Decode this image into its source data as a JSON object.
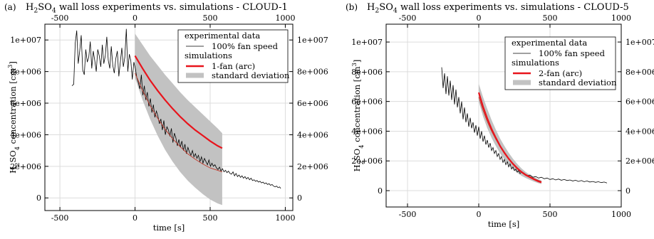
{
  "chart_data": [
    {
      "panel_label": "(a)",
      "title": "H2SO4 wall loss experiments vs. simulations - CLOUD-1",
      "type": "line",
      "xlabel": "time [s]",
      "ylabel": "H2SO4 concentration [cm3]",
      "xlim": [
        -600,
        1050
      ],
      "ylim": [
        -800000,
        11000000
      ],
      "x_ticks": [
        -500,
        0,
        500,
        1000
      ],
      "y_ticks": [
        0,
        2000000,
        4000000,
        6000000,
        8000000,
        10000000
      ],
      "y_tick_labels": [
        "0",
        "2e+006",
        "4e+006",
        "6e+006",
        "8e+006",
        "1e+007"
      ],
      "top_axis_ticks": [
        -500,
        0,
        500,
        1000
      ],
      "right_axis_ticks": [
        0,
        2000000,
        4000000,
        6000000,
        8000000,
        10000000
      ],
      "right_axis_tick_labels": [
        "0",
        "2e+006",
        "4e+006",
        "6e+006",
        "8e+006",
        "1e+007"
      ],
      "grid": true,
      "legend_position": "top-right",
      "legend": {
        "group1": "experimental data",
        "exp": "100% fan speed",
        "group2": "simulations",
        "sim": "1-fan (arc)",
        "band": "standard deviation"
      },
      "colors": {
        "experiment": "#000000",
        "simulation": "#e8141c",
        "band": "#c2c2c2",
        "fit": "#c0392b"
      },
      "series": [
        {
          "name": "100% fan speed",
          "x": [
            -420,
            -408,
            -398,
            -388,
            -378,
            -368,
            -358,
            -348,
            -338,
            -328,
            -318,
            -308,
            -298,
            -288,
            -278,
            -268,
            -258,
            -248,
            -238,
            -228,
            -218,
            -208,
            -198,
            -188,
            -178,
            -168,
            -158,
            -148,
            -138,
            -128,
            -118,
            -108,
            -98,
            -88,
            -78,
            -68,
            -58,
            -48,
            -38,
            -28,
            -18,
            -8,
            2,
            12,
            22,
            32,
            42,
            52,
            62,
            72,
            82,
            92,
            102,
            112,
            122,
            132,
            142,
            152,
            162,
            172,
            182,
            192,
            202,
            212,
            222,
            232,
            242,
            252,
            262,
            272,
            282,
            292,
            302,
            312,
            322,
            332,
            342,
            352,
            362,
            372,
            382,
            392,
            402,
            412,
            422,
            432,
            442,
            452,
            462,
            472,
            482,
            492,
            502,
            512,
            522,
            532,
            542,
            552,
            562,
            572,
            582,
            592,
            602,
            612,
            622,
            632,
            642,
            652,
            662,
            672,
            682,
            692,
            702,
            712,
            722,
            732,
            742,
            752,
            762,
            772,
            782,
            792,
            802,
            812,
            822,
            832,
            842,
            852,
            862,
            872,
            882,
            892,
            902,
            912,
            922,
            932,
            942,
            952,
            962,
            970
          ],
          "y": [
            7100000,
            7200000,
            9800000,
            10600000,
            8500000,
            9300000,
            10300000,
            8100000,
            7800000,
            9400000,
            8600000,
            8900000,
            9900000,
            8200000,
            9300000,
            8700000,
            8000000,
            9400000,
            9000000,
            8300000,
            9700000,
            8500000,
            9000000,
            10200000,
            8700000,
            8200000,
            9600000,
            8400000,
            7900000,
            8800000,
            9300000,
            7700000,
            8600000,
            9500000,
            8300000,
            8900000,
            10700000,
            8000000,
            9100000,
            8700000,
            7500000,
            8600000,
            8200000,
            7600000,
            7300000,
            6900000,
            7800000,
            6500000,
            7100000,
            6200000,
            6700000,
            5800000,
            6300000,
            5400000,
            5900000,
            5100000,
            5500000,
            5200000,
            4700000,
            5000000,
            4300000,
            4900000,
            4000000,
            4500000,
            4300000,
            3900000,
            4400000,
            3500000,
            4100000,
            3800000,
            3300000,
            3700000,
            3200000,
            3600000,
            3000000,
            3400000,
            2800000,
            3200000,
            2900000,
            2700000,
            3000000,
            2600000,
            2800000,
            2500000,
            2700000,
            2300000,
            2600000,
            2200000,
            2500000,
            2300000,
            2100000,
            2400000,
            2000000,
            2200000,
            2000000,
            2100000,
            1900000,
            1800000,
            1950000,
            1700000,
            1850000,
            1650000,
            1750000,
            1600000,
            1700000,
            1550000,
            1500000,
            1650000,
            1400000,
            1550000,
            1350000,
            1450000,
            1300000,
            1400000,
            1250000,
            1350000,
            1200000,
            1300000,
            1150000,
            1250000,
            1100000,
            1150000,
            1050000,
            1100000,
            1000000,
            1050000,
            950000,
            1000000,
            900000,
            950000,
            850000,
            900000,
            800000,
            850000,
            750000,
            700000,
            750000,
            650000,
            700000,
            600000
          ]
        },
        {
          "name": "1-fan (arc)",
          "x": [
            0,
            50,
            100,
            150,
            200,
            250,
            300,
            350,
            400,
            450,
            500,
            550,
            580
          ],
          "y": [
            9000000,
            8200000,
            7450000,
            6800000,
            6200000,
            5650000,
            5150000,
            4700000,
            4300000,
            3950000,
            3600000,
            3300000,
            3150000
          ]
        },
        {
          "name": "standard deviation",
          "x": [
            0,
            50,
            100,
            150,
            200,
            250,
            300,
            350,
            400,
            450,
            500,
            550,
            580
          ],
          "upper": [
            10400000,
            9700000,
            9000000,
            8400000,
            7800000,
            7250000,
            6700000,
            6200000,
            5750000,
            5300000,
            4850000,
            4400000,
            4100000
          ],
          "lower": [
            7600000,
            6200000,
            5000000,
            3950000,
            3050000,
            2300000,
            1650000,
            1100000,
            650000,
            250000,
            -100000,
            -350000,
            -450000
          ]
        },
        {
          "name": "",
          "x": [
            0,
            50,
            100,
            150,
            200,
            250,
            300,
            350,
            400,
            450,
            500,
            550,
            580
          ],
          "y": [
            7900000,
            6800000,
            5850000,
            5050000,
            4350000,
            3750000,
            3250000,
            2800000,
            2450000,
            2150000,
            1900000,
            1750000,
            1650000
          ]
        }
      ]
    },
    {
      "panel_label": "(b)",
      "title": "H2SO4 wall loss experiments vs. simulations - CLOUD-5",
      "type": "line",
      "xlabel": "time [s]",
      "ylabel": "H2SO4 concentration [cm3]",
      "xlim": [
        -650,
        1000
      ],
      "ylim": [
        -1100000,
        11200000
      ],
      "x_ticks": [
        -500,
        0,
        500,
        1000
      ],
      "y_ticks": [
        0,
        2000000,
        4000000,
        6000000,
        8000000,
        10000000
      ],
      "y_tick_labels": [
        "0",
        "2e+006",
        "4e+006",
        "6e+006",
        "8e+006",
        "1e+007"
      ],
      "top_axis_ticks": [
        -500,
        0,
        500,
        1000
      ],
      "right_axis_ticks": [
        0,
        2000000,
        4000000,
        6000000,
        8000000,
        10000000
      ],
      "right_axis_tick_labels": [
        "0",
        "2e+006",
        "4e+006",
        "6e+006",
        "8e+006",
        "1e+007"
      ],
      "grid": true,
      "legend_position": "top-right",
      "legend": {
        "group1": "experimental data",
        "exp": "100% fan speed",
        "group2": "simulations",
        "sim": "2-fan (arc)",
        "band": "standard deviation"
      },
      "colors": {
        "experiment": "#000000",
        "simulation": "#e8141c",
        "band": "#c2c2c2",
        "fit": "#c0392b"
      },
      "series": [
        {
          "name": "100% fan speed",
          "x": [
            -260,
            -250,
            -240,
            -230,
            -220,
            -210,
            -200,
            -190,
            -180,
            -170,
            -160,
            -150,
            -140,
            -130,
            -120,
            -110,
            -100,
            -90,
            -80,
            -70,
            -60,
            -50,
            -40,
            -30,
            -20,
            -10,
            0,
            10,
            20,
            30,
            40,
            50,
            60,
            70,
            80,
            90,
            100,
            110,
            120,
            130,
            140,
            150,
            160,
            170,
            180,
            190,
            200,
            210,
            220,
            230,
            240,
            250,
            260,
            270,
            280,
            290,
            300,
            320,
            340,
            360,
            380,
            400,
            420,
            440,
            460,
            480,
            500,
            520,
            540,
            560,
            580,
            600,
            620,
            640,
            660,
            680,
            700,
            720,
            740,
            760,
            780,
            800,
            820,
            840,
            860,
            880,
            900
          ],
          "y": [
            8300000,
            6900000,
            7900000,
            6500000,
            7700000,
            6400000,
            7400000,
            6100000,
            7100000,
            5800000,
            6800000,
            5600000,
            6300000,
            5200000,
            6000000,
            4800000,
            5600000,
            4600000,
            5200000,
            4300000,
            4900000,
            4200000,
            4600000,
            3900000,
            4400000,
            3700000,
            4300000,
            3500000,
            4000000,
            3300000,
            3700000,
            3100000,
            3400000,
            2900000,
            3200000,
            2700000,
            2900000,
            2500000,
            2700000,
            2300000,
            2500000,
            2100000,
            2300000,
            1900000,
            2100000,
            1750000,
            1950000,
            1600000,
            1800000,
            1450000,
            1600000,
            1350000,
            1450000,
            1250000,
            1350000,
            1150000,
            1250000,
            1100000,
            1000000,
            1050000,
            900000,
            950000,
            850000,
            900000,
            800000,
            850000,
            750000,
            800000,
            720000,
            780000,
            700000,
            750000,
            680000,
            720000,
            650000,
            700000,
            620000,
            680000,
            600000,
            650000,
            580000,
            620000,
            560000,
            600000,
            540000,
            580000,
            520000
          ]
        },
        {
          "name": "2-fan (arc)",
          "x": [
            0,
            30,
            60,
            90,
            120,
            150,
            180,
            210,
            240,
            270,
            300,
            330,
            360,
            390,
            420,
            440
          ],
          "y": [
            6600000,
            5650000,
            4850000,
            4150000,
            3550000,
            3000000,
            2550000,
            2150000,
            1800000,
            1500000,
            1250000,
            1050000,
            900000,
            750000,
            620000,
            560000
          ]
        },
        {
          "name": "standard deviation",
          "x": [
            0,
            30,
            60,
            90,
            120,
            150,
            180,
            210,
            240,
            270,
            300,
            330,
            360,
            390,
            420,
            440
          ],
          "upper": [
            7200000,
            6300000,
            5500000,
            4750000,
            4100000,
            3500000,
            3000000,
            2550000,
            2150000,
            1800000,
            1500000,
            1250000,
            1050000,
            900000,
            760000,
            680000
          ],
          "lower": [
            6000000,
            5000000,
            4200000,
            3550000,
            3000000,
            2500000,
            2100000,
            1750000,
            1450000,
            1200000,
            1000000,
            850000,
            720000,
            600000,
            500000,
            440000
          ]
        },
        {
          "name": "",
          "x": [
            0,
            30,
            60,
            90,
            120,
            150,
            180,
            210,
            240,
            270,
            300,
            330,
            360,
            390,
            420,
            440
          ],
          "y": [
            6300000,
            5400000,
            4650000,
            4000000,
            3450000,
            2950000,
            2500000,
            2150000,
            1850000,
            1550000,
            1300000,
            1100000,
            950000,
            800000,
            680000,
            610000
          ]
        }
      ]
    }
  ]
}
